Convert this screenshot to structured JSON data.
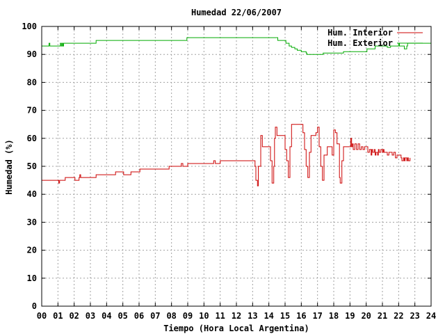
{
  "chart_data": {
    "type": "line",
    "title": "Humedad 22/06/2007",
    "xlabel": "Tiempo (Hora Local Argentina)",
    "ylabel": "Humedad (%)",
    "xlim": [
      0,
      24
    ],
    "ylim": [
      0,
      100
    ],
    "x_ticks": [
      "00",
      "01",
      "02",
      "03",
      "04",
      "05",
      "06",
      "07",
      "08",
      "09",
      "10",
      "11",
      "12",
      "13",
      "14",
      "15",
      "16",
      "17",
      "18",
      "19",
      "20",
      "21",
      "22",
      "23",
      "24"
    ],
    "y_ticks": [
      "0",
      "10",
      "20",
      "30",
      "40",
      "50",
      "60",
      "70",
      "80",
      "90",
      "100"
    ],
    "grid": true,
    "legend_position": "top-right",
    "series": [
      {
        "name": "Hum. Interior",
        "color": "#cc0000",
        "x": [
          0,
          1.0,
          1.05,
          1.1,
          1.4,
          1.45,
          2.0,
          2.05,
          2.3,
          2.35,
          2.4,
          3.3,
          3.35,
          4.5,
          4.55,
          5.0,
          5.05,
          5.5,
          5.55,
          6.0,
          6.05,
          7.0,
          7.05,
          7.8,
          7.85,
          8.0,
          8.1,
          8.3,
          8.5,
          8.6,
          8.7,
          9.0,
          9.1,
          9.5,
          10.5,
          10.6,
          10.7,
          11.0,
          12.0,
          12.5,
          13.0,
          13.1,
          13.15,
          13.2,
          13.3,
          13.35,
          13.5,
          13.6,
          13.7,
          14.0,
          14.1,
          14.2,
          14.3,
          14.35,
          14.4,
          14.5,
          14.7,
          15.0,
          15.1,
          15.2,
          15.3,
          15.4,
          15.5,
          15.6,
          16.0,
          16.1,
          16.2,
          16.3,
          16.4,
          16.5,
          16.6,
          16.7,
          16.9,
          17.0,
          17.1,
          17.2,
          17.3,
          17.4,
          17.6,
          17.8,
          17.9,
          18.0,
          18.1,
          18.2,
          18.35,
          18.4,
          18.5,
          18.6,
          18.7,
          19.0,
          19.05,
          19.1,
          19.15,
          19.2,
          19.3,
          19.4,
          19.5,
          19.6,
          19.7,
          19.8,
          19.9,
          20.0,
          20.1,
          20.2,
          20.3,
          20.35,
          20.4,
          20.5,
          20.55,
          20.6,
          20.7,
          20.75,
          20.8,
          20.9,
          21.0,
          21.05,
          21.1,
          21.3,
          21.4,
          21.5,
          21.6,
          21.7,
          21.8,
          21.9,
          22.0,
          22.1,
          22.15,
          22.2,
          22.3,
          22.35,
          22.4,
          22.5,
          22.55,
          22.6,
          22.7
        ],
        "values": [
          45,
          45,
          44,
          45,
          45,
          46,
          46,
          45,
          46,
          47,
          46,
          46,
          47,
          47,
          48,
          48,
          47,
          48,
          48,
          48,
          49,
          49,
          49,
          49,
          50,
          50,
          50,
          50,
          50,
          51,
          50,
          51,
          51,
          51,
          51,
          52,
          51,
          52,
          52,
          52,
          52,
          52,
          50,
          45,
          43,
          50,
          61,
          57,
          57,
          57,
          52,
          44,
          50,
          60,
          64,
          61,
          61,
          56,
          52,
          46,
          57,
          65,
          65,
          65,
          65,
          62,
          56,
          50,
          46,
          55,
          61,
          61,
          62,
          64,
          57,
          50,
          45,
          54,
          57,
          57,
          54,
          63,
          62,
          58,
          46,
          44,
          52,
          57,
          57,
          57,
          60,
          57,
          58,
          56,
          58,
          56,
          58,
          56,
          57,
          56,
          57,
          57,
          55,
          56,
          54,
          56,
          55,
          56,
          54,
          55,
          54,
          56,
          55,
          56,
          55,
          56,
          55,
          54,
          55,
          55,
          54,
          55,
          53,
          54,
          54,
          54,
          53,
          52,
          53,
          52,
          53,
          52,
          53,
          52,
          53
        ]
      },
      {
        "name": "Hum. Exterior",
        "color": "#00aa00",
        "x": [
          0,
          0.4,
          0.45,
          0.5,
          1.1,
          1.15,
          1.2,
          1.25,
          1.3,
          1.35,
          3.3,
          3.35,
          8.9,
          8.95,
          13.7,
          14.5,
          14.55,
          15.0,
          15.05,
          15.2,
          15.25,
          15.35,
          15.4,
          15.55,
          15.6,
          15.7,
          15.75,
          15.9,
          16.0,
          16.2,
          16.3,
          16.35,
          17.3,
          17.35,
          18.6,
          18.65,
          18.9,
          19.0,
          19.1,
          20.0,
          20.05,
          20.5,
          20.55,
          21.2,
          21.3,
          21.5,
          21.9,
          22.0,
          22.05,
          22.3,
          22.35,
          22.5,
          22.55,
          22.8,
          22.85,
          24.0
        ],
        "values": [
          93,
          93,
          94,
          93,
          93,
          94,
          93,
          94,
          93,
          94,
          94,
          95,
          95,
          96,
          96,
          96,
          95,
          95,
          94,
          94,
          93,
          93,
          92.5,
          92.5,
          92,
          92,
          91.5,
          91.5,
          91,
          91,
          90.5,
          90,
          90,
          90.5,
          91,
          91,
          91,
          91,
          91,
          91,
          92,
          92,
          93,
          93,
          92.5,
          93,
          93,
          94,
          93,
          93,
          92,
          93,
          94,
          94,
          94,
          94
        ]
      }
    ]
  }
}
